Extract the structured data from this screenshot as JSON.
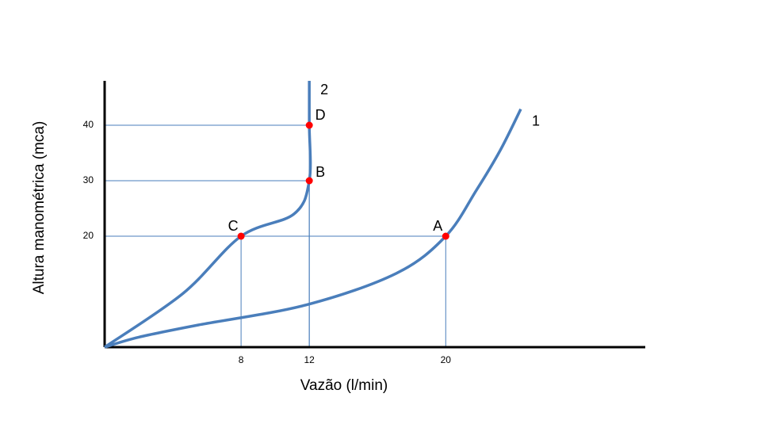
{
  "chart_data": {
    "type": "line",
    "x_label": "Vazão (l/min)",
    "y_label": "Altura manométrica (mca)",
    "xlim": [
      0,
      31.7
    ],
    "ylim": [
      0,
      48
    ],
    "xticks": [
      8,
      12,
      20
    ],
    "yticks": [
      20,
      30,
      40
    ],
    "series": [
      {
        "name": "1",
        "color": "#4a7ebb",
        "x": [
          0,
          2,
          5.5,
          11.8,
          17.1,
          20,
          21.8,
          23.2,
          24.4
        ],
        "values": [
          0,
          1.8,
          4,
          7.6,
          13.3,
          20,
          28.3,
          35.5,
          42.9
        ]
      },
      {
        "name": "2",
        "color": "#4a7ebb",
        "x": [
          0,
          4.6,
          8,
          11.1,
          12,
          12,
          12
        ],
        "values": [
          0,
          9.7,
          20,
          24,
          30,
          40,
          48
        ]
      }
    ],
    "points": {
      "labels": [
        "A",
        "B",
        "C",
        "D"
      ],
      "x": [
        20,
        12,
        8,
        12
      ],
      "values": [
        20,
        30,
        20,
        40
      ],
      "color": "#ff0000"
    }
  }
}
